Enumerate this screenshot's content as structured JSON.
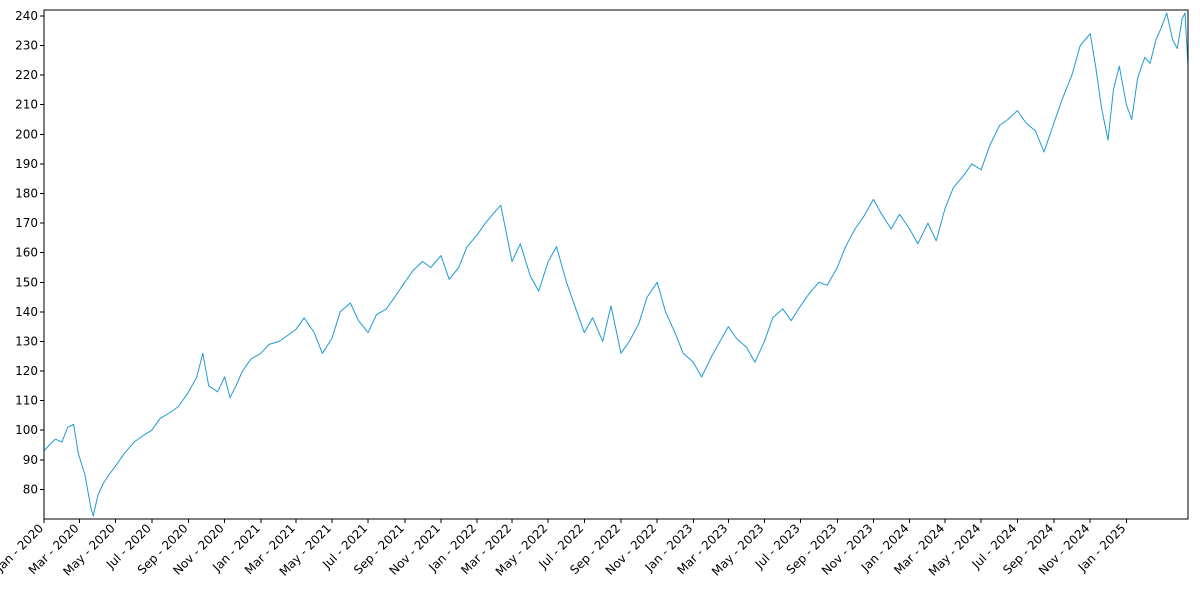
{
  "chart_data": {
    "type": "line",
    "title": "",
    "xlabel": "",
    "ylabel": "",
    "grid": false,
    "legend": "none",
    "xlim": [
      "2020-01-01",
      "2025-04-15"
    ],
    "ylim": [
      70,
      242
    ],
    "yticks": [
      80,
      90,
      100,
      110,
      120,
      130,
      140,
      150,
      160,
      170,
      180,
      190,
      200,
      210,
      220,
      230,
      240
    ],
    "xticks": [
      {
        "date": "2020-01-01",
        "label": "Jan - 2020"
      },
      {
        "date": "2020-03-01",
        "label": "Mar - 2020"
      },
      {
        "date": "2020-05-01",
        "label": "May - 2020"
      },
      {
        "date": "2020-07-01",
        "label": "Jul - 2020"
      },
      {
        "date": "2020-09-01",
        "label": "Sep - 2020"
      },
      {
        "date": "2020-11-01",
        "label": "Nov - 2020"
      },
      {
        "date": "2021-01-01",
        "label": "Jan - 2021"
      },
      {
        "date": "2021-03-01",
        "label": "Mar - 2021"
      },
      {
        "date": "2021-05-01",
        "label": "May - 2021"
      },
      {
        "date": "2021-07-01",
        "label": "Jul - 2021"
      },
      {
        "date": "2021-09-01",
        "label": "Sep - 2021"
      },
      {
        "date": "2021-11-01",
        "label": "Nov - 2021"
      },
      {
        "date": "2022-01-01",
        "label": "Jan - 2022"
      },
      {
        "date": "2022-03-01",
        "label": "Mar - 2022"
      },
      {
        "date": "2022-05-01",
        "label": "May - 2022"
      },
      {
        "date": "2022-07-01",
        "label": "Jul - 2022"
      },
      {
        "date": "2022-09-01",
        "label": "Sep - 2022"
      },
      {
        "date": "2022-11-01",
        "label": "Nov - 2022"
      },
      {
        "date": "2023-01-01",
        "label": "Jan - 2023"
      },
      {
        "date": "2023-03-01",
        "label": "Mar - 2023"
      },
      {
        "date": "2023-05-01",
        "label": "May - 2023"
      },
      {
        "date": "2023-07-01",
        "label": "Jul - 2023"
      },
      {
        "date": "2023-09-01",
        "label": "Sep - 2023"
      },
      {
        "date": "2023-11-01",
        "label": "Nov - 2023"
      },
      {
        "date": "2024-01-01",
        "label": "Jan - 2024"
      },
      {
        "date": "2024-03-01",
        "label": "Mar - 2024"
      },
      {
        "date": "2024-05-01",
        "label": "May - 2024"
      },
      {
        "date": "2024-07-01",
        "label": "Jul - 2024"
      },
      {
        "date": "2024-09-01",
        "label": "Sep - 2024"
      },
      {
        "date": "2024-11-01",
        "label": "Nov - 2024"
      },
      {
        "date": "2025-01-01",
        "label": "Jan - 2025"
      }
    ],
    "series": [
      {
        "color": "#1f9ad6",
        "points": [
          [
            "2020-01-01",
            93
          ],
          [
            "2020-01-10",
            95
          ],
          [
            "2020-01-20",
            97
          ],
          [
            "2020-01-31",
            96
          ],
          [
            "2020-02-10",
            101
          ],
          [
            "2020-02-20",
            102
          ],
          [
            "2020-02-28",
            92
          ],
          [
            "2020-03-10",
            85
          ],
          [
            "2020-03-20",
            74
          ],
          [
            "2020-03-24",
            71
          ],
          [
            "2020-04-01",
            78
          ],
          [
            "2020-04-10",
            82
          ],
          [
            "2020-04-20",
            85
          ],
          [
            "2020-05-01",
            88
          ],
          [
            "2020-05-15",
            92
          ],
          [
            "2020-06-01",
            96
          ],
          [
            "2020-06-15",
            98
          ],
          [
            "2020-07-01",
            100
          ],
          [
            "2020-07-15",
            104
          ],
          [
            "2020-08-01",
            106
          ],
          [
            "2020-08-15",
            108
          ],
          [
            "2020-09-01",
            113
          ],
          [
            "2020-09-15",
            118
          ],
          [
            "2020-09-25",
            126
          ],
          [
            "2020-10-05",
            115
          ],
          [
            "2020-10-20",
            113
          ],
          [
            "2020-11-01",
            118
          ],
          [
            "2020-11-10",
            111
          ],
          [
            "2020-11-20",
            115
          ],
          [
            "2020-12-01",
            120
          ],
          [
            "2020-12-15",
            124
          ],
          [
            "2021-01-01",
            126
          ],
          [
            "2021-01-15",
            129
          ],
          [
            "2021-02-01",
            130
          ],
          [
            "2021-02-15",
            132
          ],
          [
            "2021-03-01",
            134
          ],
          [
            "2021-03-15",
            138
          ],
          [
            "2021-04-01",
            133
          ],
          [
            "2021-04-15",
            126
          ],
          [
            "2021-05-01",
            131
          ],
          [
            "2021-05-15",
            140
          ],
          [
            "2021-06-01",
            143
          ],
          [
            "2021-06-15",
            137
          ],
          [
            "2021-07-01",
            133
          ],
          [
            "2021-07-15",
            139
          ],
          [
            "2021-08-01",
            141
          ],
          [
            "2021-08-15",
            145
          ],
          [
            "2021-09-01",
            150
          ],
          [
            "2021-09-15",
            154
          ],
          [
            "2021-10-01",
            157
          ],
          [
            "2021-10-15",
            155
          ],
          [
            "2021-11-01",
            159
          ],
          [
            "2021-11-15",
            151
          ],
          [
            "2021-12-01",
            155
          ],
          [
            "2021-12-15",
            162
          ],
          [
            "2022-01-01",
            166
          ],
          [
            "2022-01-15",
            170
          ],
          [
            "2022-02-01",
            174
          ],
          [
            "2022-02-10",
            176
          ],
          [
            "2022-02-20",
            166
          ],
          [
            "2022-03-01",
            157
          ],
          [
            "2022-03-15",
            163
          ],
          [
            "2022-04-01",
            152
          ],
          [
            "2022-04-15",
            147
          ],
          [
            "2022-05-01",
            157
          ],
          [
            "2022-05-15",
            162
          ],
          [
            "2022-06-01",
            150
          ],
          [
            "2022-06-15",
            142
          ],
          [
            "2022-07-01",
            133
          ],
          [
            "2022-07-15",
            138
          ],
          [
            "2022-08-01",
            130
          ],
          [
            "2022-08-15",
            142
          ],
          [
            "2022-09-01",
            126
          ],
          [
            "2022-09-15",
            130
          ],
          [
            "2022-10-01",
            136
          ],
          [
            "2022-10-15",
            145
          ],
          [
            "2022-11-01",
            150
          ],
          [
            "2022-11-15",
            140
          ],
          [
            "2022-12-01",
            133
          ],
          [
            "2022-12-15",
            126
          ],
          [
            "2023-01-01",
            123
          ],
          [
            "2023-01-15",
            118
          ],
          [
            "2023-02-01",
            125
          ],
          [
            "2023-02-15",
            130
          ],
          [
            "2023-03-01",
            135
          ],
          [
            "2023-03-15",
            131
          ],
          [
            "2023-04-01",
            128
          ],
          [
            "2023-04-15",
            123
          ],
          [
            "2023-05-01",
            130
          ],
          [
            "2023-05-15",
            138
          ],
          [
            "2023-06-01",
            141
          ],
          [
            "2023-06-15",
            137
          ],
          [
            "2023-07-01",
            142
          ],
          [
            "2023-07-15",
            146
          ],
          [
            "2023-08-01",
            150
          ],
          [
            "2023-08-15",
            149
          ],
          [
            "2023-09-01",
            155
          ],
          [
            "2023-09-15",
            162
          ],
          [
            "2023-10-01",
            168
          ],
          [
            "2023-10-15",
            172
          ],
          [
            "2023-11-01",
            178
          ],
          [
            "2023-11-15",
            173
          ],
          [
            "2023-12-01",
            168
          ],
          [
            "2023-12-15",
            173
          ],
          [
            "2024-01-01",
            168
          ],
          [
            "2024-01-15",
            163
          ],
          [
            "2024-02-01",
            170
          ],
          [
            "2024-02-15",
            164
          ],
          [
            "2024-03-01",
            175
          ],
          [
            "2024-03-15",
            182
          ],
          [
            "2024-04-01",
            186
          ],
          [
            "2024-04-15",
            190
          ],
          [
            "2024-05-01",
            188
          ],
          [
            "2024-05-15",
            196
          ],
          [
            "2024-06-01",
            203
          ],
          [
            "2024-06-15",
            205
          ],
          [
            "2024-07-01",
            208
          ],
          [
            "2024-07-15",
            204
          ],
          [
            "2024-08-01",
            201
          ],
          [
            "2024-08-15",
            194
          ],
          [
            "2024-09-01",
            204
          ],
          [
            "2024-09-15",
            212
          ],
          [
            "2024-10-01",
            220
          ],
          [
            "2024-10-15",
            230
          ],
          [
            "2024-11-01",
            234
          ],
          [
            "2024-11-10",
            223
          ],
          [
            "2024-11-20",
            209
          ],
          [
            "2024-12-01",
            198
          ],
          [
            "2024-12-10",
            215
          ],
          [
            "2024-12-20",
            223
          ],
          [
            "2025-01-01",
            210
          ],
          [
            "2025-01-10",
            205
          ],
          [
            "2025-01-20",
            219
          ],
          [
            "2025-02-01",
            226
          ],
          [
            "2025-02-10",
            224
          ],
          [
            "2025-02-20",
            232
          ],
          [
            "2025-03-01",
            236
          ],
          [
            "2025-03-10",
            241
          ],
          [
            "2025-03-20",
            232
          ],
          [
            "2025-03-28",
            229
          ],
          [
            "2025-04-05",
            239
          ],
          [
            "2025-04-10",
            241
          ],
          [
            "2025-04-15",
            223
          ]
        ]
      }
    ]
  }
}
